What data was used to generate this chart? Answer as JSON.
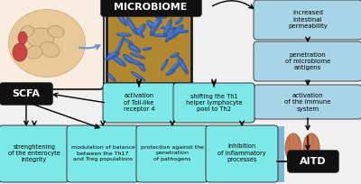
{
  "bg_color": "#f0f0f0",
  "black_box_color": "#111111",
  "white_text": "#ffffff",
  "cyan_fill": "#7de8e8",
  "cyan_border": "#333333",
  "blue_bar_fill": "#7ab8d8",
  "gray_box_fill": "#a8d4e8",
  "gray_box_border": "#555555",
  "gut_bg": "#f8f0e8",
  "gut_border": "#333333",
  "bacteria_bg": "#c8a840",
  "bacteria_dark": "#2a3060",
  "thyroid_color": "#c87850",
  "arrow_color": "#111111",
  "microbiome_text": "MICROBIOME",
  "scfa_text": "SCFA",
  "aitd_text": "AITD",
  "box1_text": "increased\nintestinal\npermeability",
  "box2_text": "penetration\nof microbiome\nantigens",
  "box3_text": "activation\nof the immune\nsystem",
  "box4_text": "activation\nof Toll-like\nreceptor 4",
  "box5_text": "shifting the Th1\nhelper lymphocyte\npool to Th2",
  "box6_text": "strenghtening\nof the enterocyte\nintegrity",
  "box7_text": "modulation of balance\nbetween the Th17\nand Treg populations",
  "box8_text": "protection against the\npenetration\nof pathogens",
  "box9_text": "inhibition\nof inflammatory\nprocesses"
}
